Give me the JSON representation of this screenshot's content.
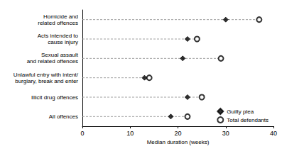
{
  "chart_data": {
    "type": "scatter",
    "orientation": "horizontal",
    "x_label": "Median duration (weeks)",
    "categories": [
      "Homicide and\nrelated offences",
      "Acts intended to\ncause injury",
      "Sexual assault\nand related offences",
      "Unlawful entry with intent/\nburglary, break and enter",
      "Illicit drug offences",
      "All offences"
    ],
    "series": [
      {
        "name": "Guilty plea",
        "color": "#000000",
        "marker": "diamond",
        "values": [
          30,
          22,
          21,
          13,
          22,
          18.5
        ]
      },
      {
        "name": "Total defendants",
        "color": "#000000",
        "marker": "emptyCircle",
        "values": [
          37,
          24,
          29,
          14,
          25,
          22
        ]
      }
    ],
    "xlim": [
      0,
      40
    ],
    "xticks": [
      0,
      10,
      20,
      30,
      40
    ],
    "grid": false,
    "legend": "bottom-right"
  }
}
